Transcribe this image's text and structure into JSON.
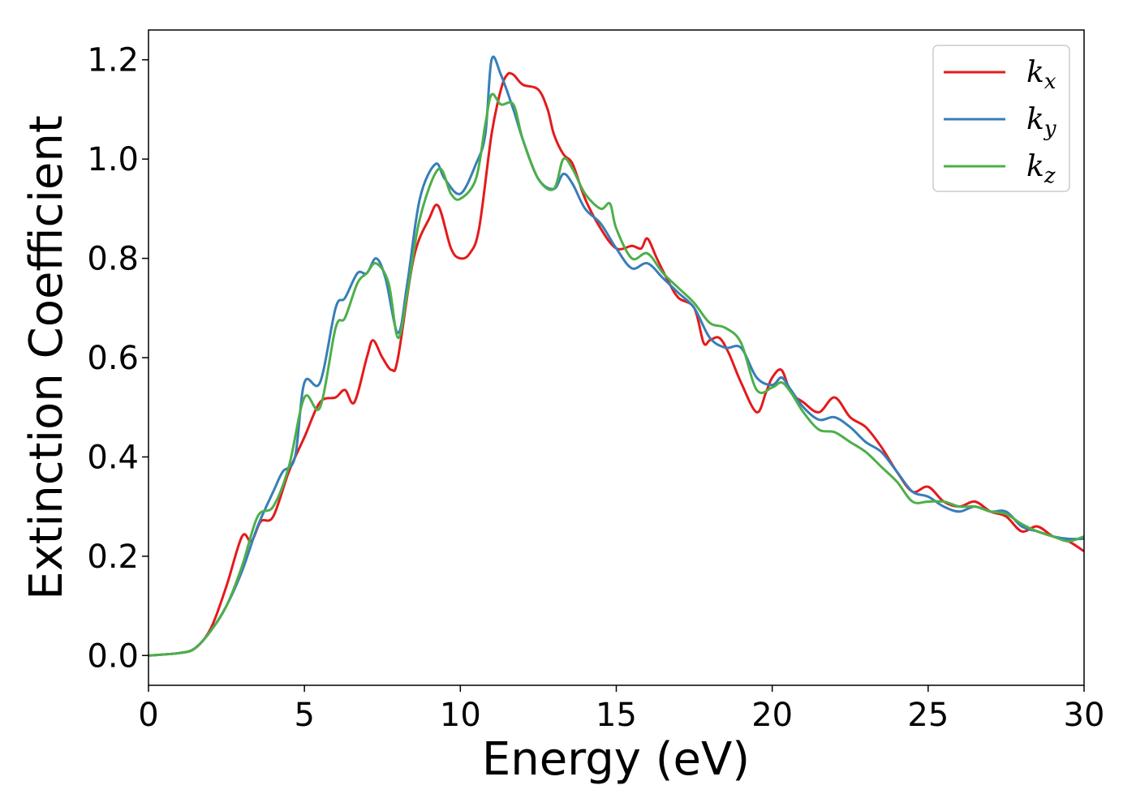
{
  "chart_data": {
    "type": "line",
    "title": "",
    "xlabel": "Energy (eV)",
    "ylabel": "Extinction Coefficient",
    "xlim": [
      0,
      30
    ],
    "ylim": [
      -0.06,
      1.26
    ],
    "xticks": [
      "0",
      "5",
      "10",
      "15",
      "20",
      "25",
      "30"
    ],
    "yticks": [
      "0.0",
      "0.2",
      "0.4",
      "0.6",
      "0.8",
      "1.0",
      "1.2"
    ],
    "grid": false,
    "legend_position": "top-right",
    "series": [
      {
        "name": "k",
        "subscript": "x",
        "color": "#e41a1c",
        "points": [
          [
            0,
            0
          ],
          [
            1,
            0.005
          ],
          [
            1.5,
            0.015
          ],
          [
            2,
            0.055
          ],
          [
            2.5,
            0.14
          ],
          [
            3,
            0.24
          ],
          [
            3.3,
            0.23
          ],
          [
            3.6,
            0.27
          ],
          [
            4,
            0.28
          ],
          [
            4.5,
            0.37
          ],
          [
            5,
            0.44
          ],
          [
            5.5,
            0.51
          ],
          [
            6,
            0.52
          ],
          [
            6.3,
            0.535
          ],
          [
            6.6,
            0.51
          ],
          [
            7,
            0.6
          ],
          [
            7.2,
            0.635
          ],
          [
            7.5,
            0.6
          ],
          [
            7.8,
            0.575
          ],
          [
            8,
            0.6
          ],
          [
            8.5,
            0.8
          ],
          [
            9,
            0.88
          ],
          [
            9.3,
            0.905
          ],
          [
            9.7,
            0.82
          ],
          [
            10,
            0.8
          ],
          [
            10.3,
            0.81
          ],
          [
            10.6,
            0.86
          ],
          [
            11,
            1.05
          ],
          [
            11.3,
            1.14
          ],
          [
            11.5,
            1.17
          ],
          [
            11.7,
            1.17
          ],
          [
            12,
            1.15
          ],
          [
            12.5,
            1.14
          ],
          [
            12.8,
            1.1
          ],
          [
            13,
            1.05
          ],
          [
            13.3,
            1.01
          ],
          [
            13.6,
            0.99
          ],
          [
            14,
            0.92
          ],
          [
            14.5,
            0.86
          ],
          [
            15,
            0.82
          ],
          [
            15.5,
            0.825
          ],
          [
            15.8,
            0.82
          ],
          [
            16,
            0.84
          ],
          [
            16.3,
            0.8
          ],
          [
            16.7,
            0.75
          ],
          [
            17,
            0.72
          ],
          [
            17.5,
            0.7
          ],
          [
            17.8,
            0.63
          ],
          [
            18,
            0.635
          ],
          [
            18.3,
            0.64
          ],
          [
            18.6,
            0.61
          ],
          [
            19,
            0.55
          ],
          [
            19.5,
            0.49
          ],
          [
            19.8,
            0.53
          ],
          [
            20,
            0.56
          ],
          [
            20.3,
            0.575
          ],
          [
            20.6,
            0.53
          ],
          [
            21,
            0.51
          ],
          [
            21.5,
            0.49
          ],
          [
            22,
            0.52
          ],
          [
            22.5,
            0.48
          ],
          [
            23,
            0.46
          ],
          [
            23.5,
            0.42
          ],
          [
            24,
            0.37
          ],
          [
            24.5,
            0.33
          ],
          [
            25,
            0.34
          ],
          [
            25.5,
            0.31
          ],
          [
            26,
            0.3
          ],
          [
            26.5,
            0.31
          ],
          [
            27,
            0.29
          ],
          [
            27.5,
            0.28
          ],
          [
            28,
            0.25
          ],
          [
            28.5,
            0.26
          ],
          [
            29,
            0.24
          ],
          [
            29.5,
            0.23
          ],
          [
            30,
            0.21
          ]
        ]
      },
      {
        "name": "k",
        "subscript": "y",
        "color": "#377eb8",
        "points": [
          [
            0,
            0
          ],
          [
            1,
            0.005
          ],
          [
            1.5,
            0.015
          ],
          [
            2,
            0.05
          ],
          [
            2.5,
            0.1
          ],
          [
            3,
            0.17
          ],
          [
            3.5,
            0.26
          ],
          [
            4,
            0.33
          ],
          [
            4.3,
            0.37
          ],
          [
            4.7,
            0.4
          ],
          [
            5,
            0.55
          ],
          [
            5.5,
            0.55
          ],
          [
            6,
            0.7
          ],
          [
            6.3,
            0.72
          ],
          [
            6.7,
            0.77
          ],
          [
            7,
            0.77
          ],
          [
            7.3,
            0.8
          ],
          [
            7.6,
            0.76
          ],
          [
            8,
            0.65
          ],
          [
            8.3,
            0.75
          ],
          [
            8.7,
            0.92
          ],
          [
            9.2,
            0.99
          ],
          [
            9.5,
            0.96
          ],
          [
            10,
            0.93
          ],
          [
            10.5,
            0.99
          ],
          [
            10.8,
            1.05
          ],
          [
            11,
            1.2
          ],
          [
            11.3,
            1.17
          ],
          [
            11.7,
            1.1
          ],
          [
            12,
            1.04
          ],
          [
            12.5,
            0.96
          ],
          [
            13,
            0.94
          ],
          [
            13.3,
            0.97
          ],
          [
            13.6,
            0.95
          ],
          [
            14,
            0.9
          ],
          [
            14.5,
            0.87
          ],
          [
            15,
            0.82
          ],
          [
            15.5,
            0.78
          ],
          [
            16,
            0.79
          ],
          [
            16.5,
            0.76
          ],
          [
            17,
            0.73
          ],
          [
            17.5,
            0.7
          ],
          [
            18,
            0.64
          ],
          [
            18.5,
            0.62
          ],
          [
            19,
            0.62
          ],
          [
            19.5,
            0.56
          ],
          [
            20,
            0.545
          ],
          [
            20.3,
            0.56
          ],
          [
            20.6,
            0.535
          ],
          [
            21,
            0.5
          ],
          [
            21.5,
            0.475
          ],
          [
            22,
            0.48
          ],
          [
            22.5,
            0.46
          ],
          [
            23,
            0.43
          ],
          [
            23.5,
            0.41
          ],
          [
            24,
            0.37
          ],
          [
            24.5,
            0.33
          ],
          [
            25,
            0.32
          ],
          [
            25.5,
            0.3
          ],
          [
            26,
            0.29
          ],
          [
            26.5,
            0.3
          ],
          [
            27,
            0.29
          ],
          [
            27.5,
            0.29
          ],
          [
            28,
            0.26
          ],
          [
            28.5,
            0.25
          ],
          [
            29,
            0.24
          ],
          [
            29.5,
            0.235
          ],
          [
            30,
            0.235
          ]
        ]
      },
      {
        "name": "k",
        "subscript": "z",
        "color": "#4daf4a",
        "points": [
          [
            0,
            0
          ],
          [
            1,
            0.005
          ],
          [
            1.5,
            0.015
          ],
          [
            2,
            0.05
          ],
          [
            2.5,
            0.1
          ],
          [
            3,
            0.18
          ],
          [
            3.5,
            0.28
          ],
          [
            4,
            0.3
          ],
          [
            4.5,
            0.38
          ],
          [
            5,
            0.52
          ],
          [
            5.5,
            0.5
          ],
          [
            6,
            0.66
          ],
          [
            6.3,
            0.68
          ],
          [
            6.7,
            0.75
          ],
          [
            7,
            0.77
          ],
          [
            7.3,
            0.79
          ],
          [
            7.7,
            0.75
          ],
          [
            8,
            0.64
          ],
          [
            8.3,
            0.73
          ],
          [
            8.7,
            0.88
          ],
          [
            9.3,
            0.98
          ],
          [
            9.7,
            0.93
          ],
          [
            10,
            0.92
          ],
          [
            10.5,
            0.96
          ],
          [
            10.8,
            1.07
          ],
          [
            11,
            1.13
          ],
          [
            11.3,
            1.11
          ],
          [
            11.7,
            1.11
          ],
          [
            12,
            1.04
          ],
          [
            12.5,
            0.96
          ],
          [
            13,
            0.94
          ],
          [
            13.3,
            1
          ],
          [
            13.6,
            0.98
          ],
          [
            14,
            0.93
          ],
          [
            14.5,
            0.9
          ],
          [
            14.8,
            0.91
          ],
          [
            15,
            0.86
          ],
          [
            15.5,
            0.8
          ],
          [
            16,
            0.81
          ],
          [
            16.5,
            0.77
          ],
          [
            17,
            0.74
          ],
          [
            17.5,
            0.71
          ],
          [
            18,
            0.67
          ],
          [
            18.5,
            0.66
          ],
          [
            19,
            0.63
          ],
          [
            19.5,
            0.535
          ],
          [
            20,
            0.54
          ],
          [
            20.3,
            0.55
          ],
          [
            20.6,
            0.53
          ],
          [
            21,
            0.49
          ],
          [
            21.5,
            0.455
          ],
          [
            22,
            0.45
          ],
          [
            22.5,
            0.43
          ],
          [
            23,
            0.41
          ],
          [
            23.5,
            0.38
          ],
          [
            24,
            0.35
          ],
          [
            24.5,
            0.31
          ],
          [
            25,
            0.31
          ],
          [
            25.5,
            0.31
          ],
          [
            26,
            0.3
          ],
          [
            26.5,
            0.3
          ],
          [
            27,
            0.29
          ],
          [
            27.5,
            0.285
          ],
          [
            28,
            0.265
          ],
          [
            28.5,
            0.25
          ],
          [
            29,
            0.24
          ],
          [
            29.5,
            0.23
          ],
          [
            30,
            0.24
          ]
        ]
      }
    ]
  }
}
